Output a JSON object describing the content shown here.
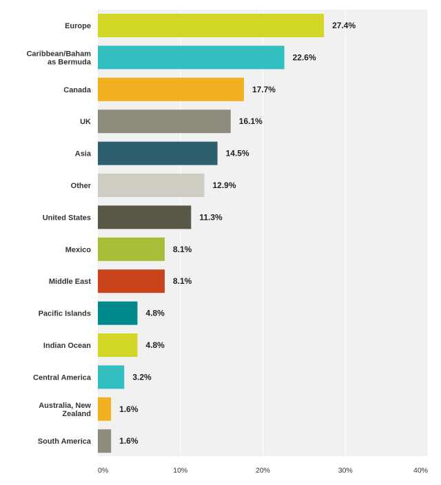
{
  "chart_data": {
    "type": "bar",
    "orientation": "horizontal",
    "categories": [
      [
        "Europe"
      ],
      [
        "Caribbean/Baham",
        "as Bermuda"
      ],
      [
        "Canada"
      ],
      [
        "UK"
      ],
      [
        "Asia"
      ],
      [
        "Other"
      ],
      [
        "United States"
      ],
      [
        "Mexico"
      ],
      [
        "Middle East"
      ],
      [
        "Pacific Islands"
      ],
      [
        "Indian Ocean"
      ],
      [
        "Central America"
      ],
      [
        "Australia, New",
        "Zealand"
      ],
      [
        "South America"
      ]
    ],
    "values": [
      27.4,
      22.6,
      17.7,
      16.1,
      14.5,
      12.9,
      11.3,
      8.1,
      8.1,
      4.8,
      4.8,
      3.2,
      1.6,
      1.6
    ],
    "value_labels": [
      "27.4%",
      "22.6%",
      "17.7%",
      "16.1%",
      "14.5%",
      "12.9%",
      "11.3%",
      "8.1%",
      "8.1%",
      "4.8%",
      "4.8%",
      "3.2%",
      "1.6%",
      "1.6%"
    ],
    "colors": [
      "#d1d627",
      "#33bfc1",
      "#f5b021",
      "#8c8b7c",
      "#2d5f6e",
      "#cfcdc1",
      "#5a5747",
      "#a9bd38",
      "#c9431c",
      "#00898a",
      "#d1d627",
      "#33bfc1",
      "#f5b021",
      "#8c8b7c"
    ],
    "xlim": [
      0,
      40
    ],
    "xticks": [
      0,
      10,
      20,
      30,
      40
    ],
    "xtick_labels": [
      "0%",
      "10%",
      "20%",
      "30%",
      "40%"
    ],
    "grid": true,
    "title": "",
    "xlabel": "",
    "ylabel": ""
  },
  "style": {
    "plot_background": "#f1f1f1",
    "grid_color": "#ffffff"
  }
}
